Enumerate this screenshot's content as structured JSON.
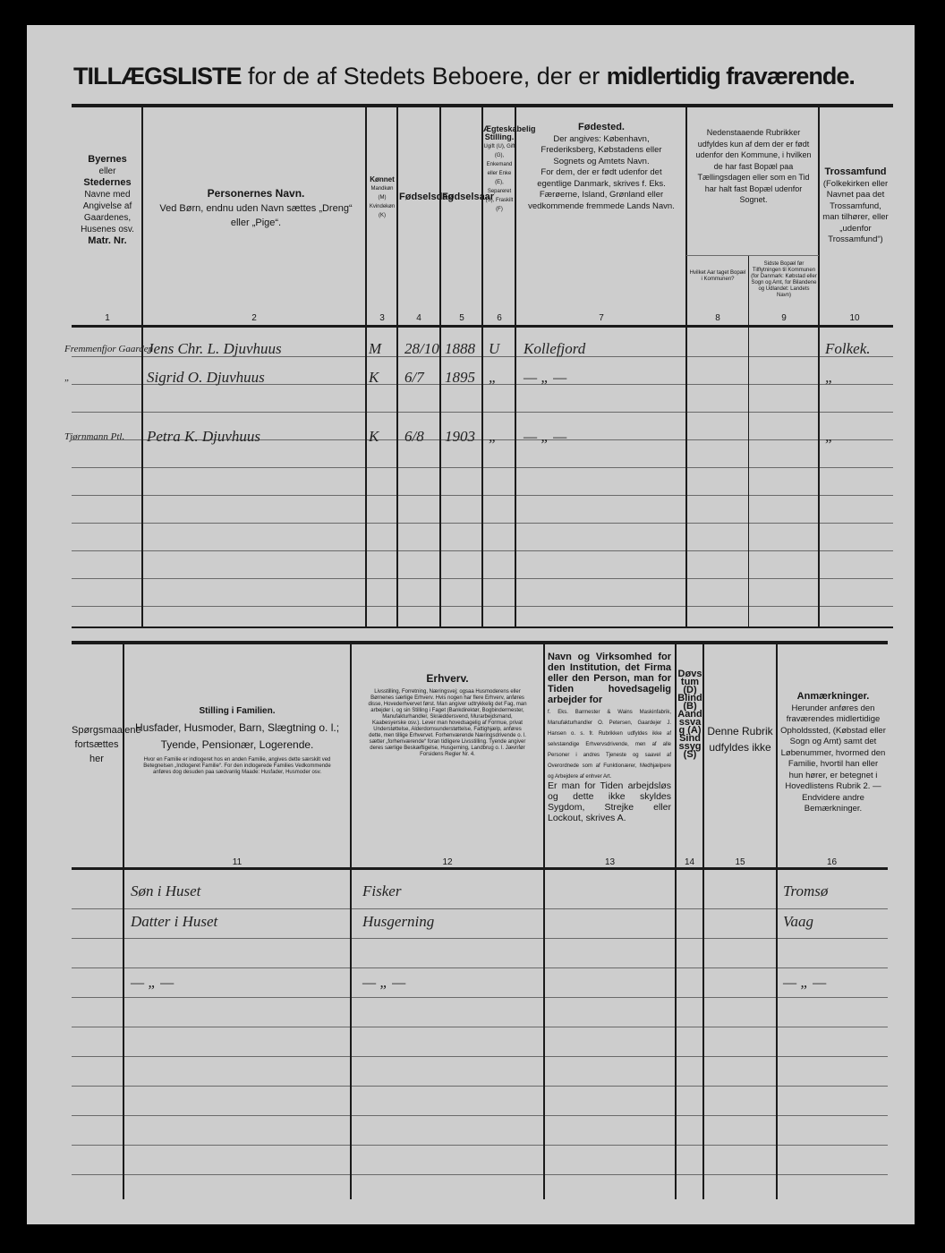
{
  "title": {
    "part1": "TILLÆGSLISTE",
    "part2": "for de af Stedets Beboere, der er",
    "part3": "midlertidig fraværende."
  },
  "upper": {
    "columns": [
      {
        "num": "1",
        "title": "Byernes",
        "lines": [
          "eller",
          "Stedernes",
          "Navne med Angivelse af Gaardenes, Husenes osv.",
          "Matr. Nr."
        ]
      },
      {
        "num": "2",
        "title": "Personernes Navn.",
        "lines": [
          "Ved Børn, endnu uden Navn sættes „Dreng“ eller „Pige“."
        ]
      },
      {
        "num": "3",
        "title": "Kønnet",
        "lines": [
          "Mandkøn (M)",
          "Kvindekøn (K)"
        ]
      },
      {
        "num": "4",
        "title": "Fødselsdag",
        "lines": []
      },
      {
        "num": "5",
        "title": "Fødselsaar",
        "lines": []
      },
      {
        "num": "6",
        "title": "Ægteskabelig Stilling.",
        "lines": [
          "Ugift (U), Gift (G), Enkemand eller Enke (E), Separeret (S), Fraskilt (F)"
        ]
      },
      {
        "num": "7",
        "title": "Fødested.",
        "lines": [
          "Der angives: København, Frederiksberg, Købstadens eller Sognets og Amtets Navn.",
          "For dem, der er født udenfor det egentlige Danmark, skrives f. Eks. Færøerne, Island, Grønland eller vedkommende fremmede Lands Navn."
        ]
      },
      {
        "num": "8",
        "title": "",
        "lines": [
          "Hvilket Aar taget Bopæl i Kommunen?"
        ]
      },
      {
        "num": "9",
        "title": "",
        "lines": [
          "Sidste Bopæl før Tilflytningen til Kommunen (for Danmark: Købstad eller Sogn og Amt, for Bilandene og Udlandet: Landets Navn)"
        ]
      },
      {
        "num": "10",
        "title": "Trossamfund",
        "lines": [
          "(Folkekirken eller Navnet paa det Trossamfund, man tilhører, eller „udenfor Trossamfund“)"
        ]
      }
    ],
    "group_8_9": "Nedenstaaende Rubrikker udfyldes kun af dem der er født udenfor den Kommune, i hvilken de har fast Bopæl paa Tællingsdagen eller som en Tid har halt fast Bopæl udenfor Sognet.",
    "rows": [
      {
        "place": "Fremmenfjor Gaarden",
        "name": "Jens Chr. L. Djuvhuus",
        "sex": "M",
        "day": "28/10",
        "year": "1888",
        "status": "U",
        "birthplace": "Kollefjord",
        "religion": "Folkek."
      },
      {
        "place": "„",
        "name": "Sigrid O. Djuvhuus",
        "sex": "K",
        "day": "6/7",
        "year": "1895",
        "status": "„",
        "birthplace": "— „ —",
        "religion": "„"
      },
      {
        "place": "",
        "name": "",
        "sex": "",
        "day": "",
        "year": "",
        "status": "",
        "birthplace": "",
        "religion": ""
      },
      {
        "place": "Tjørnmann Ptl.",
        "name": "Petra K. Djuvhuus",
        "sex": "K",
        "day": "6/8",
        "year": "1903",
        "status": "„",
        "birthplace": "— „ —",
        "religion": "„"
      }
    ]
  },
  "lower": {
    "side_note": "Spørgsmaalene fortsættes her",
    "columns": [
      {
        "num": "11",
        "title": "Stilling i Familien.",
        "lines": [
          "Husfader, Husmoder, Barn, Slægtning o. l.; Tyende, Pensionær, Logerende."
        ],
        "small": "Hvor en Familie er indlogeret hos en anden Familie, angives dette særskilt ved Betegnelsen „Indlogeret Familie“. For den indlogerede Families Vedkommende anføres dog desuden paa sædvanlig Maade: Husfader, Husmoder osv."
      },
      {
        "num": "12",
        "title": "Erhverv.",
        "lines": [],
        "small": "Livsstilling, Forretning, Næringsvej; ogsaa Husmoderens eller Børnenes særlige Erhverv. Hvis nogen har flere Erhverv, anføres disse, Hovederhvervet først. Man angiver udtrykkelig det Fag, man arbejder i, og sin Stilling i Faget (Bankdirektør, Bogbindermester, Manufakturhandler, Skræddersvend, Murarbejdsmand, Kaabesyerske osv.). Lever man hovedsagelig af Formue, privat Understøttelse, Alderdomsunderstøttelse, Fattighjælp, anføres dette, men tillige Erhvervet. Forhenværende Næringsdrivende o. l. sætter „forhenværende“ foran tidligere Livsstilling. Tyende angiver deres særlige Beskæftigelse, Husgerning, Landbrug o. l. Jævnfør Forsidens Regler Nr. 4."
      },
      {
        "num": "13",
        "title": "Navn og Virksomhed for den Institution, det Firma eller den Person, man for Tiden hovedsagelig arbejder for",
        "lines": [
          "Er man for Tiden arbejdsløs og dette ikke skyldes Sygdom, Strejke eller Lockout, skrives A."
        ],
        "small": "f. Eks. Barmester & Wains Maskinfabrik, Manufakturhandler O. Petersen, Gaardejer J. Hansen o. s. fr. Rubrikken udfyldes ikke af selvstændige Erhvervsdrivende, men af alle Personer i andres Tjeneste og saavel af Overordnede som af Funktionærer, Medhjælpere og Arbejdere af enhver Art."
      },
      {
        "num": "14",
        "title": "Døvstum (D) Blind (B) Aandssvag (A) Sindssyg (S)",
        "lines": [],
        "small": ""
      },
      {
        "num": "15",
        "title": "",
        "lines": [
          "Denne Rubrik udfyldes ikke"
        ],
        "small": ""
      },
      {
        "num": "16",
        "title": "Anmærkninger.",
        "lines": [
          "Herunder anføres den fraværendes midlertidige Opholdssted, (Købstad eller Sogn og Amt) samt det Løbenummer, hvormed den Familie, hvortil han eller hun hører, er betegnet i Hovedlistens Rubrik 2. — Endvidere andre Bemærkninger."
        ],
        "small": ""
      }
    ],
    "rows": [
      {
        "family": "Søn i Huset",
        "occupation": "Fisker",
        "remarks": "Tromsø"
      },
      {
        "family": "Datter i Huset",
        "occupation": "Husgerning",
        "remarks": "Vaag"
      },
      {
        "family": "",
        "occupation": "",
        "remarks": ""
      },
      {
        "family": "— „ —",
        "occupation": "— „ —",
        "remarks": "— „ —"
      }
    ]
  }
}
